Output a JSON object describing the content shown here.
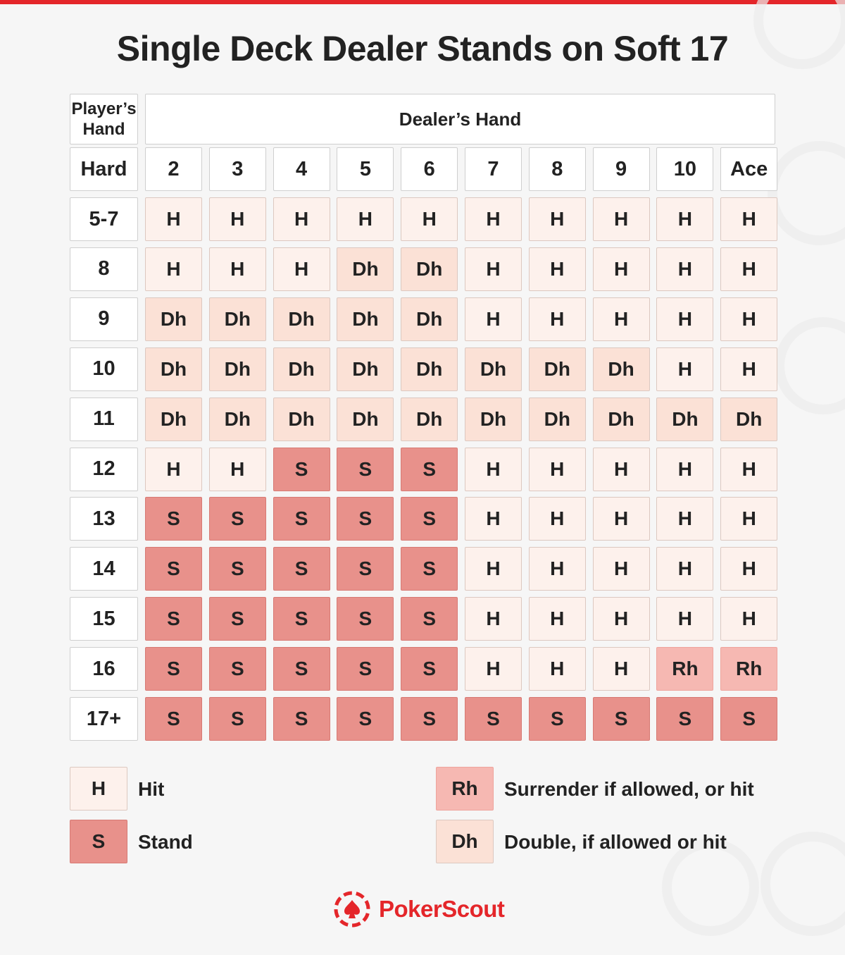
{
  "title": "Single Deck Dealer Stands on Soft 17",
  "colors": {
    "accent": "#e4262a",
    "H": "#fdf1ec",
    "Dh": "#fbe1d6",
    "S": "#e8918b",
    "Rh": "#f6b8b2"
  },
  "chart_data": {
    "type": "table",
    "title": "Single Deck Dealer Stands on Soft 17",
    "corner_header": "Player’s Hand",
    "column_group_header": "Dealer’s Hand",
    "row_group_label": "Hard",
    "columns": [
      "2",
      "3",
      "4",
      "5",
      "6",
      "7",
      "8",
      "9",
      "10",
      "Ace"
    ],
    "rows": [
      {
        "label": "5-7",
        "actions": [
          "H",
          "H",
          "H",
          "H",
          "H",
          "H",
          "H",
          "H",
          "H",
          "H"
        ]
      },
      {
        "label": "8",
        "actions": [
          "H",
          "H",
          "H",
          "Dh",
          "Dh",
          "H",
          "H",
          "H",
          "H",
          "H"
        ]
      },
      {
        "label": "9",
        "actions": [
          "Dh",
          "Dh",
          "Dh",
          "Dh",
          "Dh",
          "H",
          "H",
          "H",
          "H",
          "H"
        ]
      },
      {
        "label": "10",
        "actions": [
          "Dh",
          "Dh",
          "Dh",
          "Dh",
          "Dh",
          "Dh",
          "Dh",
          "Dh",
          "H",
          "H"
        ]
      },
      {
        "label": "11",
        "actions": [
          "Dh",
          "Dh",
          "Dh",
          "Dh",
          "Dh",
          "Dh",
          "Dh",
          "Dh",
          "Dh",
          "Dh"
        ]
      },
      {
        "label": "12",
        "actions": [
          "H",
          "H",
          "S",
          "S",
          "S",
          "H",
          "H",
          "H",
          "H",
          "H"
        ]
      },
      {
        "label": "13",
        "actions": [
          "S",
          "S",
          "S",
          "S",
          "S",
          "H",
          "H",
          "H",
          "H",
          "H"
        ]
      },
      {
        "label": "14",
        "actions": [
          "S",
          "S",
          "S",
          "S",
          "S",
          "H",
          "H",
          "H",
          "H",
          "H"
        ]
      },
      {
        "label": "15",
        "actions": [
          "S",
          "S",
          "S",
          "S",
          "S",
          "H",
          "H",
          "H",
          "H",
          "H"
        ]
      },
      {
        "label": "16",
        "actions": [
          "S",
          "S",
          "S",
          "S",
          "S",
          "H",
          "H",
          "H",
          "Rh",
          "Rh"
        ]
      },
      {
        "label": "17+",
        "actions": [
          "S",
          "S",
          "S",
          "S",
          "S",
          "S",
          "S",
          "S",
          "S",
          "S"
        ]
      }
    ]
  },
  "legend": [
    {
      "code": "H",
      "text": "Hit"
    },
    {
      "code": "S",
      "text": "Stand"
    },
    {
      "code": "Rh",
      "text": "Surrender if allowed, or hit"
    },
    {
      "code": "Dh",
      "text": "Double, if allowed or hit"
    }
  ],
  "logo": {
    "text": "PokerScout",
    "icon": "spade-chip-icon"
  }
}
